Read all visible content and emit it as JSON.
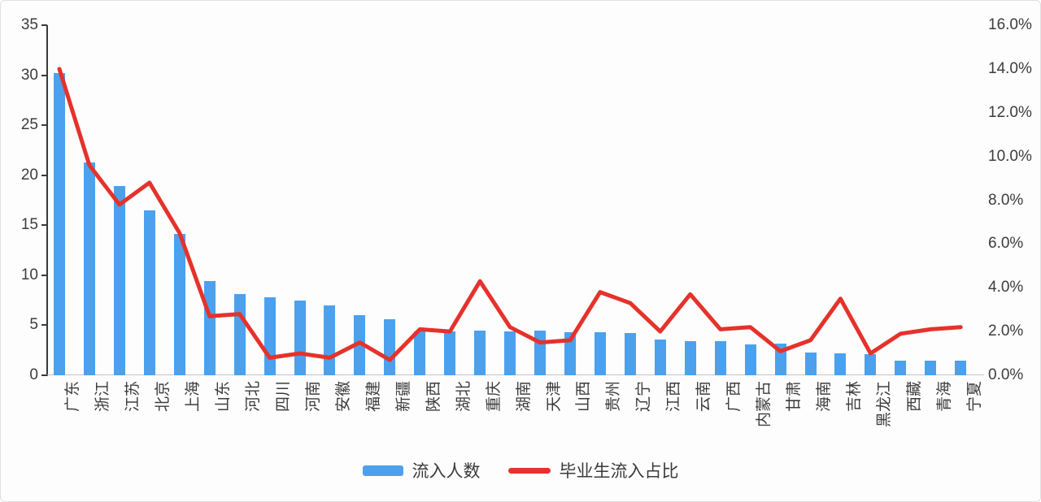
{
  "chart_data": {
    "type": "bar",
    "combo": "bar+line dual axis",
    "grid": false,
    "legend_position": "bottom",
    "categories": [
      "广东",
      "浙江",
      "江苏",
      "北京",
      "上海",
      "山东",
      "河北",
      "四川",
      "河南",
      "安徽",
      "福建",
      "新疆",
      "陕西",
      "湖北",
      "重庆",
      "湖南",
      "天津",
      "山西",
      "贵州",
      "辽宁",
      "江西",
      "云南",
      "广西",
      "内蒙古",
      "甘肃",
      "海南",
      "吉林",
      "黑龙江",
      "西藏",
      "青海",
      "宁夏"
    ],
    "series": [
      {
        "name": "流入人数",
        "type": "bar",
        "axis": "left",
        "color": "#4BA1ED",
        "values": [
          30.2,
          21.3,
          18.9,
          16.5,
          14.1,
          9.4,
          8.1,
          7.8,
          7.5,
          7.0,
          6.0,
          5.6,
          4.4,
          4.4,
          4.5,
          4.4,
          4.5,
          4.3,
          4.3,
          4.2,
          3.6,
          3.4,
          3.4,
          3.1,
          3.2,
          2.3,
          2.2,
          2.1,
          1.5,
          1.5,
          1.5
        ]
      },
      {
        "name": "毕业生流入占比",
        "type": "line",
        "axis": "right",
        "color": "#E5322B",
        "values": [
          14.0,
          9.6,
          7.8,
          8.8,
          6.5,
          2.7,
          2.8,
          0.8,
          1.0,
          0.8,
          1.5,
          0.7,
          2.1,
          2.0,
          4.3,
          2.2,
          1.5,
          1.6,
          3.8,
          3.3,
          2.0,
          3.7,
          2.1,
          2.2,
          1.1,
          1.6,
          3.5,
          1.0,
          1.9,
          2.1,
          2.2
        ]
      }
    ],
    "left_axis": {
      "min": 0,
      "max": 35,
      "ticks": [
        "35",
        "30",
        "25",
        "20",
        "15",
        "10",
        "5",
        "0"
      ]
    },
    "right_axis": {
      "min": 0,
      "max": 16,
      "ticks": [
        "16.0%",
        "14.0%",
        "12.0%",
        "10.0%",
        "8.0%",
        "6.0%",
        "4.0%",
        "2.0%",
        "0.0%"
      ]
    }
  },
  "colors": {
    "bar": "#4BA1ED",
    "line": "#E5322B",
    "axis": "#3a3a3a",
    "baseline": "#c4c4c4"
  }
}
